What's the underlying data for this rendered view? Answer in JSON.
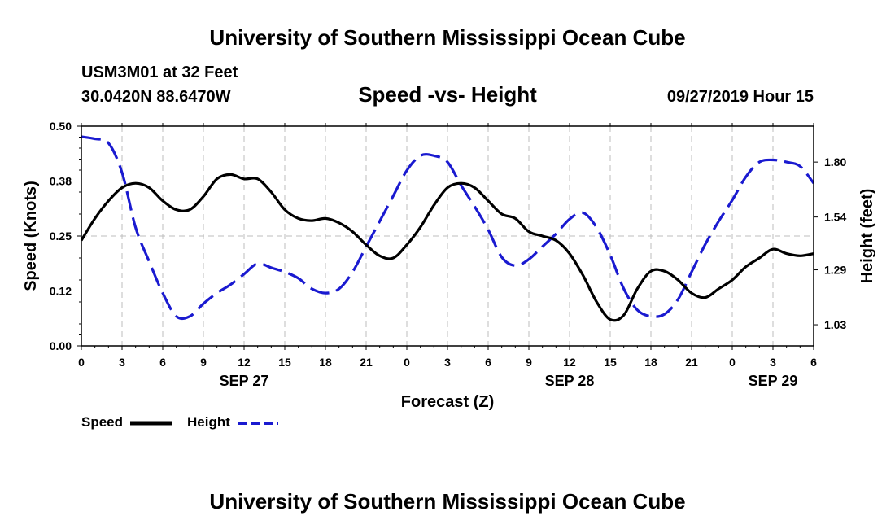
{
  "header": {
    "title": "University of Southern Mississippi Ocean Cube",
    "station": "USM3M01 at 32 Feet",
    "coords": "30.0420N 88.6470W",
    "subtitle": "Speed -vs- Height",
    "datetime": "09/27/2019 Hour 15"
  },
  "footer": {
    "title": "University of Southern Mississippi Ocean Cube"
  },
  "chart_data": {
    "type": "line",
    "title": "Speed -vs- Height",
    "xlabel": "Forecast (Z)",
    "ylabel": "Speed (Knots)",
    "y2label": "Height (feet)",
    "xlim": [
      0,
      54
    ],
    "ylim": [
      0,
      0.5
    ],
    "y2lim": [
      0.93,
      1.97
    ],
    "x_ticks": [
      0,
      3,
      6,
      9,
      12,
      15,
      18,
      21,
      24,
      27,
      30,
      33,
      36,
      39,
      42,
      45,
      48,
      51,
      54
    ],
    "x_tick_labels": [
      "0",
      "3",
      "6",
      "9",
      "12",
      "15",
      "18",
      "21",
      "0",
      "3",
      "6",
      "9",
      "12",
      "15",
      "18",
      "21",
      "0",
      "3",
      "6"
    ],
    "y_ticks": [
      0,
      0.125,
      0.25,
      0.375,
      0.5
    ],
    "y_tick_labels": [
      "0.00",
      "0.12",
      "0.25",
      "0.38",
      "0.50"
    ],
    "y2_ticks": [
      1.03,
      1.29,
      1.54,
      1.8
    ],
    "y2_tick_labels": [
      "1.03",
      "1.29",
      "1.54",
      "1.80"
    ],
    "date_labels": [
      {
        "x": 12,
        "label": "SEP 27"
      },
      {
        "x": 36,
        "label": "SEP 28"
      },
      {
        "x": 51,
        "label": "SEP 29"
      }
    ],
    "grid": true,
    "legend": "bottom-left",
    "series": [
      {
        "name": "Speed",
        "axis": "left",
        "color": "#000000",
        "style": "solid",
        "x": [
          0,
          1,
          2,
          3,
          4,
          5,
          6,
          7,
          8,
          9,
          10,
          11,
          12,
          13,
          14,
          15,
          16,
          17,
          18,
          19,
          20,
          21,
          22,
          23,
          24,
          25,
          26,
          27,
          28,
          29,
          30,
          31,
          32,
          33,
          34,
          35,
          36,
          37,
          38,
          39,
          40,
          41,
          42,
          43,
          44,
          45,
          46,
          47,
          48,
          49,
          50,
          51,
          52,
          53,
          54
        ],
        "values": [
          0.24,
          0.29,
          0.33,
          0.36,
          0.37,
          0.36,
          0.33,
          0.31,
          0.31,
          0.34,
          0.38,
          0.39,
          0.38,
          0.38,
          0.35,
          0.31,
          0.29,
          0.285,
          0.29,
          0.28,
          0.26,
          0.23,
          0.205,
          0.2,
          0.23,
          0.27,
          0.32,
          0.36,
          0.37,
          0.36,
          0.33,
          0.3,
          0.29,
          0.26,
          0.25,
          0.24,
          0.21,
          0.16,
          0.1,
          0.06,
          0.07,
          0.13,
          0.17,
          0.17,
          0.15,
          0.12,
          0.11,
          0.13,
          0.15,
          0.18,
          0.2,
          0.22,
          0.21,
          0.205,
          0.21
        ]
      },
      {
        "name": "Height",
        "axis": "right",
        "color": "#1a1ad0",
        "style": "dashed",
        "x": [
          0,
          1,
          2,
          3,
          4,
          5,
          6,
          7,
          8,
          9,
          10,
          11,
          12,
          13,
          14,
          15,
          16,
          17,
          18,
          19,
          20,
          21,
          22,
          23,
          24,
          25,
          26,
          27,
          28,
          29,
          30,
          31,
          32,
          33,
          34,
          35,
          36,
          37,
          38,
          39,
          40,
          41,
          42,
          43,
          44,
          45,
          46,
          47,
          48,
          49,
          50,
          51,
          52,
          53,
          54
        ],
        "values": [
          1.92,
          1.91,
          1.89,
          1.75,
          1.49,
          1.33,
          1.18,
          1.07,
          1.07,
          1.13,
          1.18,
          1.22,
          1.27,
          1.32,
          1.3,
          1.28,
          1.25,
          1.2,
          1.18,
          1.2,
          1.28,
          1.4,
          1.52,
          1.64,
          1.76,
          1.83,
          1.83,
          1.8,
          1.69,
          1.59,
          1.48,
          1.35,
          1.31,
          1.34,
          1.4,
          1.46,
          1.53,
          1.56,
          1.49,
          1.36,
          1.2,
          1.1,
          1.07,
          1.08,
          1.15,
          1.28,
          1.41,
          1.52,
          1.62,
          1.73,
          1.8,
          1.81,
          1.8,
          1.78,
          1.7
        ]
      }
    ]
  },
  "legend": {
    "speed_label": "Speed",
    "height_label": "Height"
  }
}
